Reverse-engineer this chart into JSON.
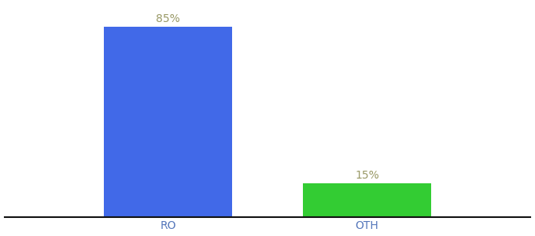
{
  "categories": [
    "RO",
    "OTH"
  ],
  "values": [
    85,
    15
  ],
  "bar_colors": [
    "#4169e8",
    "#33cc33"
  ],
  "label_texts": [
    "85%",
    "15%"
  ],
  "label_color": "#999966",
  "bar_width": 0.22,
  "x_positions": [
    0.28,
    0.62
  ],
  "xlim": [
    0.0,
    0.9
  ],
  "ylim": [
    0,
    95
  ],
  "background_color": "#ffffff",
  "xlabel_fontsize": 10,
  "label_fontsize": 10,
  "spine_color": "#111111"
}
